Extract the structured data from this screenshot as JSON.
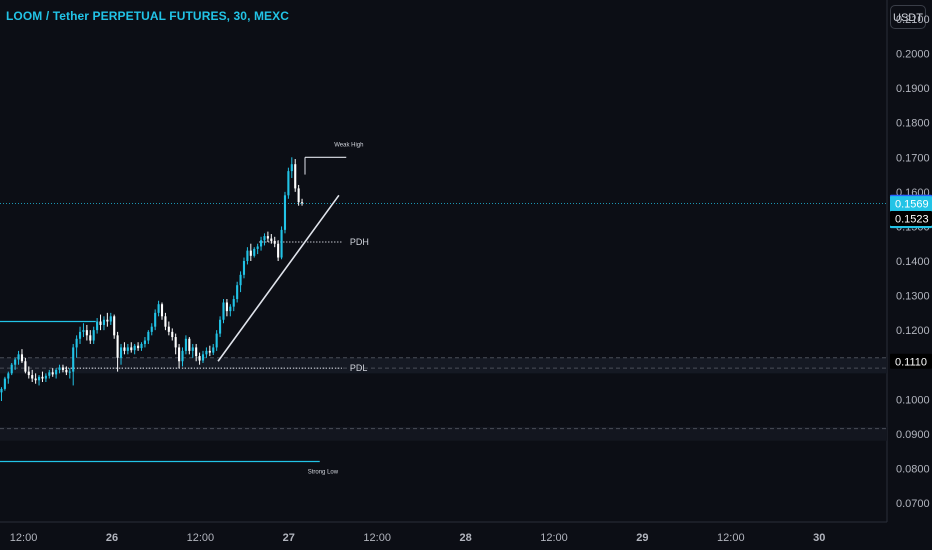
{
  "header": {
    "title": "LOOM / Tether PERPETUAL FUTURES, 30, MEXC",
    "currency": "USDT"
  },
  "chart_data": {
    "type": "candlestick",
    "title": "LOOM / Tether PERPETUAL FUTURES, 30, MEXC",
    "y_ticks": [
      "0.2100",
      "0.2000",
      "0.1900",
      "0.1800",
      "0.1700",
      "0.1600",
      "0.1500",
      "0.1400",
      "0.1300",
      "0.1200",
      "0.1100",
      "0.1000",
      "0.0900",
      "0.0800",
      "0.0700"
    ],
    "ylim": [
      0.0645,
      0.2155
    ],
    "x_ticks": [
      {
        "label": "12:00",
        "t": 0.0
      },
      {
        "label": "26",
        "t": 12
      },
      {
        "label": "12:00",
        "t": 24
      },
      {
        "label": "27",
        "t": 36
      },
      {
        "label": "12:00",
        "t": 48
      },
      {
        "label": "28",
        "t": 60
      },
      {
        "label": "12:00",
        "t": 72
      },
      {
        "label": "29",
        "t": 84
      },
      {
        "label": "12:00",
        "t": 96
      },
      {
        "label": "30",
        "t": 108
      }
    ],
    "xlim": [
      -3.2,
      117.2
    ],
    "price_labels": [
      {
        "value": "0.1570",
        "price": 0.157,
        "color": "#2962ff"
      },
      {
        "value": "0.1569",
        "price": 0.1566,
        "color": "#22c3e6",
        "sub": "10:44"
      },
      {
        "value": "0.1523",
        "price": 0.1523,
        "color": "#000000"
      },
      {
        "value": "0.1110",
        "price": 0.111,
        "color": "#000000"
      }
    ],
    "annotations": [
      {
        "text": "Weak High",
        "price": 0.17,
        "t_start": 38.2,
        "t_end": 43.8,
        "style": "solid"
      },
      {
        "text": "PDH",
        "price": 0.1455,
        "t_start": 32.0,
        "t_end": 43.2,
        "style": "dotted"
      },
      {
        "text": "PDL",
        "price": 0.109,
        "t_start": 5.2,
        "t_end": 43.2,
        "style": "dotted"
      },
      {
        "text": "Strong Low",
        "price": 0.082,
        "t_start": -3.2,
        "t_end": 40.2,
        "style": "solid"
      }
    ],
    "series": [
      {
        "name": "candles",
        "ohlc": [
          [
            0.102,
            0.1035,
            0.0995,
            0.103
          ],
          [
            0.103,
            0.1065,
            0.1025,
            0.106
          ],
          [
            0.106,
            0.108,
            0.1045,
            0.1075
          ],
          [
            0.1075,
            0.1105,
            0.107,
            0.11
          ],
          [
            0.11,
            0.112,
            0.1085,
            0.1115
          ],
          [
            0.1115,
            0.114,
            0.11,
            0.113
          ],
          [
            0.113,
            0.1145,
            0.1105,
            0.111
          ],
          [
            0.111,
            0.112,
            0.1075,
            0.108
          ],
          [
            0.108,
            0.1095,
            0.106,
            0.107
          ],
          [
            0.107,
            0.1085,
            0.105,
            0.106
          ],
          [
            0.106,
            0.1075,
            0.1045,
            0.1055
          ],
          [
            0.1055,
            0.107,
            0.104,
            0.1065
          ],
          [
            0.1065,
            0.108,
            0.105,
            0.106
          ],
          [
            0.106,
            0.1075,
            0.105,
            0.1068
          ],
          [
            0.1068,
            0.1085,
            0.106,
            0.1078
          ],
          [
            0.1078,
            0.109,
            0.1065,
            0.1072
          ],
          [
            0.1072,
            0.109,
            0.106,
            0.1085
          ],
          [
            0.1085,
            0.11,
            0.1075,
            0.1092
          ],
          [
            0.1092,
            0.11,
            0.1078,
            0.1085
          ],
          [
            0.1085,
            0.1095,
            0.107,
            0.1078
          ],
          [
            0.1078,
            0.109,
            0.106,
            0.108
          ],
          [
            0.108,
            0.116,
            0.104,
            0.115
          ],
          [
            0.115,
            0.1185,
            0.112,
            0.1175
          ],
          [
            0.1175,
            0.121,
            0.116,
            0.1195
          ],
          [
            0.1195,
            0.122,
            0.118,
            0.12
          ],
          [
            0.12,
            0.1215,
            0.117,
            0.1185
          ],
          [
            0.1185,
            0.12,
            0.116,
            0.117
          ],
          [
            0.117,
            0.121,
            0.116,
            0.12
          ],
          [
            0.12,
            0.1235,
            0.119,
            0.1225
          ],
          [
            0.1225,
            0.1245,
            0.12,
            0.1215
          ],
          [
            0.1215,
            0.124,
            0.12,
            0.123
          ],
          [
            0.123,
            0.125,
            0.121,
            0.1225
          ],
          [
            0.1225,
            0.125,
            0.1215,
            0.124
          ],
          [
            0.124,
            0.1245,
            0.1175,
            0.1185
          ],
          [
            0.1185,
            0.1195,
            0.108,
            0.112
          ],
          [
            0.112,
            0.116,
            0.11,
            0.115
          ],
          [
            0.115,
            0.1165,
            0.113,
            0.114
          ],
          [
            0.114,
            0.116,
            0.113,
            0.115
          ],
          [
            0.115,
            0.1165,
            0.1135,
            0.1142
          ],
          [
            0.1142,
            0.116,
            0.113,
            0.1155
          ],
          [
            0.1155,
            0.1165,
            0.114,
            0.1148
          ],
          [
            0.1148,
            0.1165,
            0.114,
            0.116
          ],
          [
            0.116,
            0.118,
            0.115,
            0.117
          ],
          [
            0.117,
            0.12,
            0.116,
            0.1195
          ],
          [
            0.1195,
            0.122,
            0.1185,
            0.121
          ],
          [
            0.121,
            0.126,
            0.12,
            0.125
          ],
          [
            0.125,
            0.1285,
            0.124,
            0.1275
          ],
          [
            0.1275,
            0.128,
            0.123,
            0.124
          ],
          [
            0.124,
            0.125,
            0.12,
            0.121
          ],
          [
            0.121,
            0.1225,
            0.1185,
            0.1195
          ],
          [
            0.1195,
            0.1205,
            0.117,
            0.118
          ],
          [
            0.118,
            0.119,
            0.113,
            0.115
          ],
          [
            0.115,
            0.116,
            0.109,
            0.111
          ],
          [
            0.111,
            0.115,
            0.1095,
            0.114
          ],
          [
            0.114,
            0.1185,
            0.113,
            0.1175
          ],
          [
            0.1175,
            0.118,
            0.113,
            0.114
          ],
          [
            0.114,
            0.116,
            0.112,
            0.115
          ],
          [
            0.115,
            0.116,
            0.111,
            0.1125
          ],
          [
            0.1125,
            0.1135,
            0.11,
            0.1112
          ],
          [
            0.1112,
            0.114,
            0.1105,
            0.113
          ],
          [
            0.113,
            0.115,
            0.112,
            0.114
          ],
          [
            0.114,
            0.1155,
            0.1125,
            0.1135
          ],
          [
            0.1135,
            0.116,
            0.1128,
            0.115
          ],
          [
            0.115,
            0.12,
            0.114,
            0.119
          ],
          [
            0.119,
            0.124,
            0.118,
            0.123
          ],
          [
            0.123,
            0.129,
            0.122,
            0.128
          ],
          [
            0.128,
            0.129,
            0.124,
            0.1255
          ],
          [
            0.1255,
            0.1275,
            0.124,
            0.1268
          ],
          [
            0.1268,
            0.13,
            0.1255,
            0.129
          ],
          [
            0.129,
            0.134,
            0.128,
            0.133
          ],
          [
            0.133,
            0.137,
            0.131,
            0.136
          ],
          [
            0.136,
            0.141,
            0.135,
            0.14
          ],
          [
            0.14,
            0.144,
            0.139,
            0.143
          ],
          [
            0.143,
            0.145,
            0.14,
            0.1415
          ],
          [
            0.1415,
            0.144,
            0.141,
            0.1435
          ],
          [
            0.1435,
            0.145,
            0.142,
            0.1442
          ],
          [
            0.1442,
            0.147,
            0.143,
            0.146
          ],
          [
            0.146,
            0.148,
            0.1445,
            0.1472
          ],
          [
            0.1472,
            0.1485,
            0.1455,
            0.1465
          ],
          [
            0.1465,
            0.1478,
            0.145,
            0.1458
          ],
          [
            0.1458,
            0.147,
            0.144,
            0.145
          ],
          [
            0.145,
            0.146,
            0.14,
            0.141
          ],
          [
            0.141,
            0.15,
            0.1405,
            0.149
          ],
          [
            0.149,
            0.16,
            0.148,
            0.159
          ],
          [
            0.159,
            0.167,
            0.158,
            0.166
          ],
          [
            0.166,
            0.17,
            0.164,
            0.168
          ],
          [
            0.168,
            0.1695,
            0.16,
            0.161
          ],
          [
            0.161,
            0.162,
            0.156,
            0.157
          ],
          [
            0.157,
            0.158,
            0.156,
            0.1569
          ]
        ]
      }
    ]
  }
}
